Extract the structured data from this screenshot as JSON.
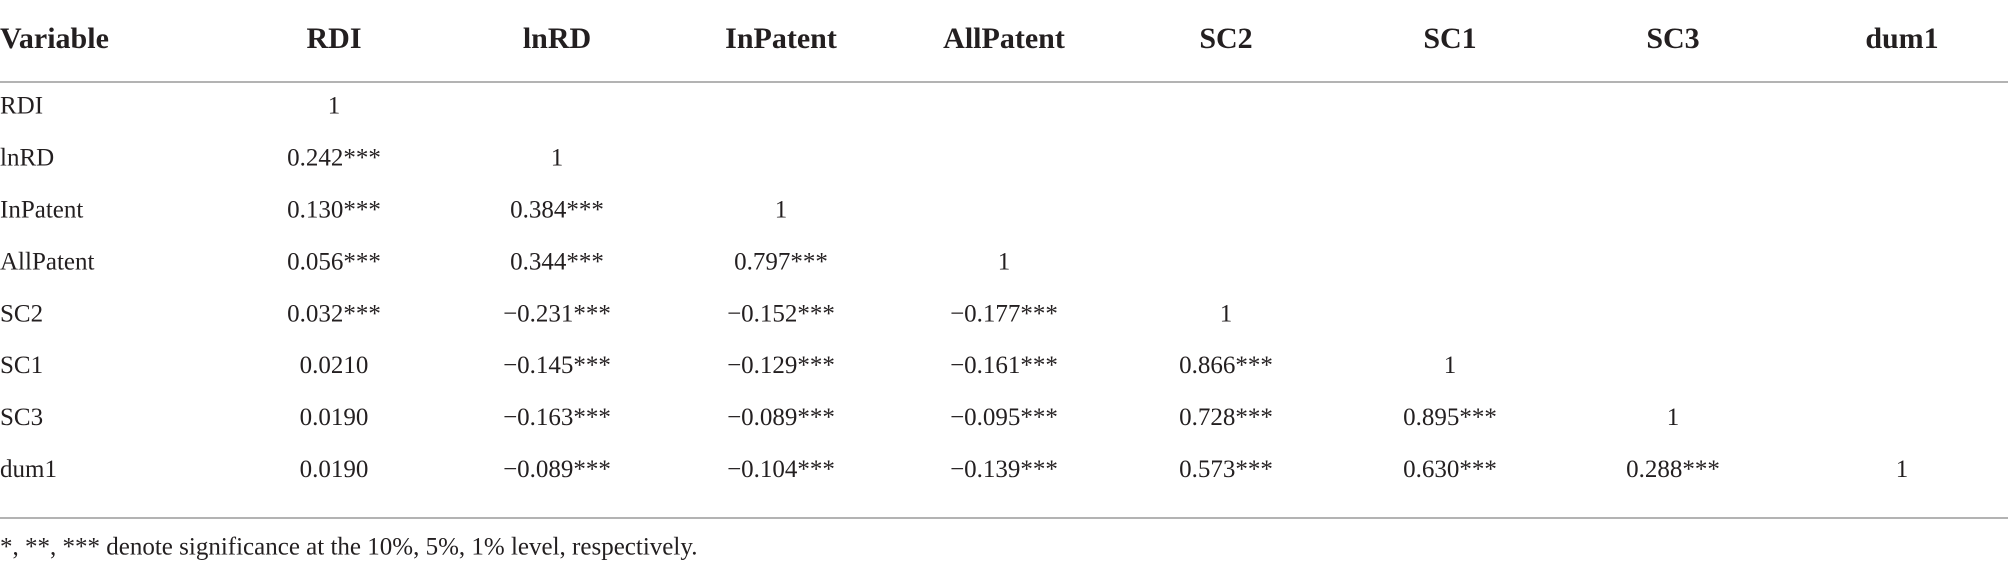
{
  "table": {
    "headers": [
      "Variable",
      "RDI",
      "lnRD",
      "InPatent",
      "AllPatent",
      "SC2",
      "SC1",
      "SC3",
      "dum1"
    ],
    "rows": [
      [
        "RDI",
        "1"
      ],
      [
        "lnRD",
        "0.242***",
        "1"
      ],
      [
        "InPatent",
        "0.130***",
        "0.384***",
        "1"
      ],
      [
        "AllPatent",
        "0.056***",
        "0.344***",
        "0.797***",
        "1"
      ],
      [
        "SC2",
        "0.032***",
        "−0.231***",
        "−0.152***",
        "−0.177***",
        "1"
      ],
      [
        "SC1",
        "0.0210",
        "−0.145***",
        "−0.129***",
        "−0.161***",
        "0.866***",
        "1"
      ],
      [
        "SC3",
        "0.0190",
        "−0.163***",
        "−0.089***",
        "−0.095***",
        "0.728***",
        "0.895***",
        "1"
      ],
      [
        "dum1",
        "0.0190",
        "−0.089***",
        "−0.104***",
        "−0.139***",
        "0.573***",
        "0.630***",
        "0.288***",
        "1"
      ]
    ],
    "footnote": "*, **, ***  denote significance at the 10%, 5%, 1% level, respectively."
  }
}
